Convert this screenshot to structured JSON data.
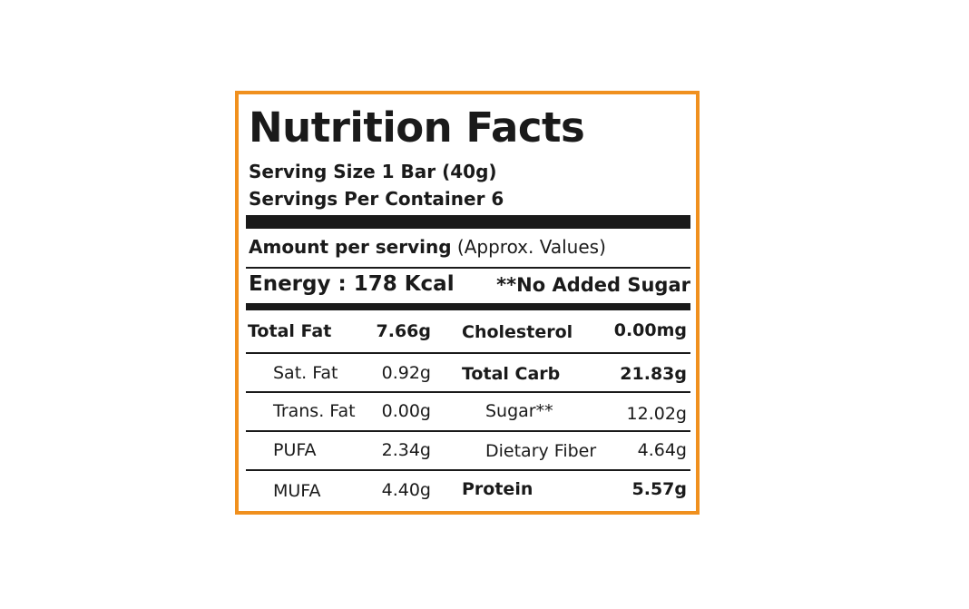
{
  "label": {
    "title": "Nutrition Facts",
    "serving_size": "Serving Size 1 Bar (40g)",
    "servings_per_container": "Servings Per Container 6",
    "amount_bold": "Amount per serving",
    "amount_note": " (Approx. Values)",
    "energy": "Energy : 178 Kcal",
    "no_added_sugar": "**No Added Sugar",
    "rows": [
      {
        "left_name": "Total Fat",
        "left_value": "7.66g",
        "right_name": "Cholesterol",
        "right_value": "0.00mg"
      },
      {
        "left_name": "Sat. Fat",
        "left_value": "0.92g",
        "right_name": "Total Carb",
        "right_value": "21.83g"
      },
      {
        "left_name": "Trans. Fat",
        "left_value": "0.00g",
        "right_name": "Sugar**",
        "right_value": "12.02g"
      },
      {
        "left_name": "PUFA",
        "left_value": "2.34g",
        "right_name": "Dietary Fiber",
        "right_value": "4.64g"
      },
      {
        "left_name": "MUFA",
        "left_value": "4.40g",
        "right_name": "Protein",
        "right_value": "5.57g"
      }
    ]
  },
  "colors": {
    "border": "#f0901e",
    "ink": "#1a1a1a"
  }
}
